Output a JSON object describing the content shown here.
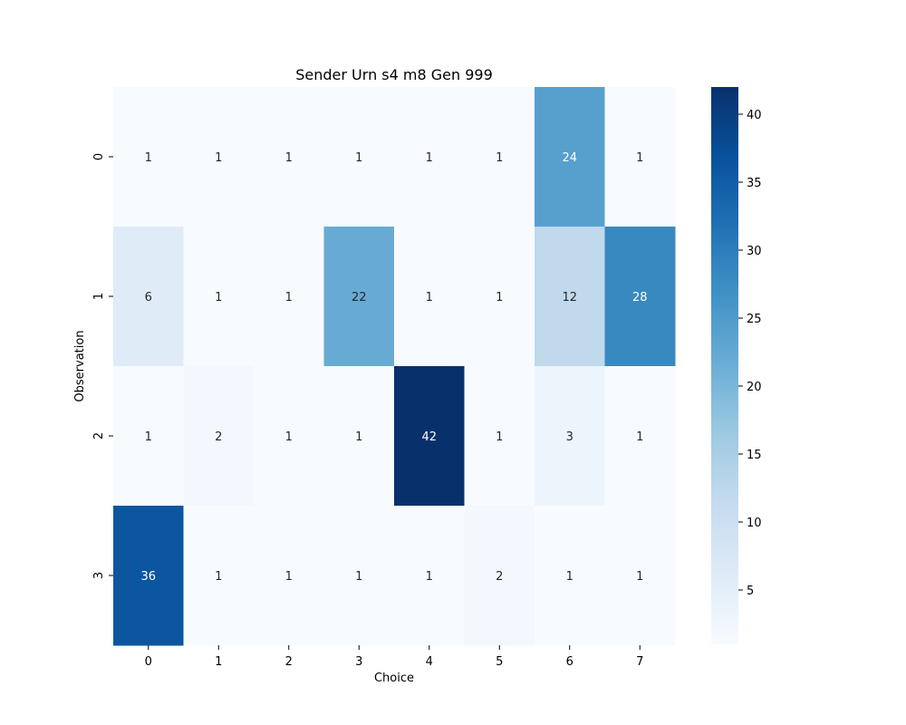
{
  "chart_data": {
    "type": "heatmap",
    "title": "Sender Urn s4 m8 Gen 999",
    "xlabel": "Choice",
    "ylabel": "Observation",
    "x_ticks": [
      "0",
      "1",
      "2",
      "3",
      "4",
      "5",
      "6",
      "7"
    ],
    "y_ticks": [
      "0",
      "1",
      "2",
      "3"
    ],
    "values": [
      [
        1,
        1,
        1,
        1,
        1,
        1,
        24,
        1
      ],
      [
        6,
        1,
        1,
        22,
        1,
        1,
        12,
        28
      ],
      [
        1,
        2,
        1,
        1,
        42,
        1,
        3,
        1
      ],
      [
        36,
        1,
        1,
        1,
        1,
        2,
        1,
        1
      ]
    ],
    "colorscale": "Blues",
    "vmin": 1,
    "vmax": 42,
    "colorbar_ticks": [
      "5",
      "10",
      "15",
      "20",
      "25",
      "30",
      "35",
      "40"
    ],
    "annotations": "cell values shown",
    "grid": false,
    "colors": {
      "low": "#f7fbff",
      "high": "#08306b",
      "text_dark": "#262626",
      "text_light": "#ffffff"
    }
  }
}
